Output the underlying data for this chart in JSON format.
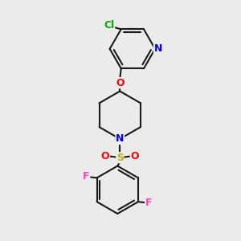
{
  "bg_color": "#ebebeb",
  "bond_color": "#1a1a1a",
  "bond_width": 1.5,
  "atom_colors": {
    "N": "#0000ee",
    "O": "#ff0000",
    "S": "#ccaa00",
    "F": "#ff44bb",
    "Cl": "#00aa00"
  },
  "fig_width": 3.0,
  "fig_height": 3.0,
  "dpi": 100
}
